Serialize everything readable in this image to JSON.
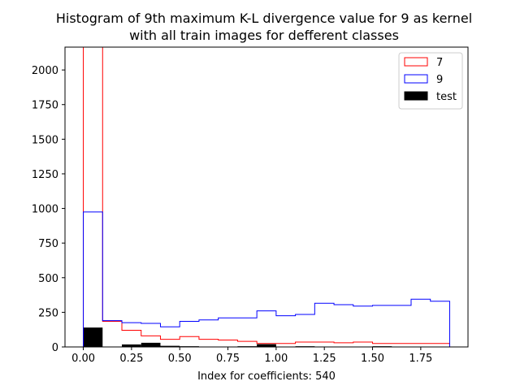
{
  "chart_data": {
    "type": "histogram",
    "title_lines": [
      "Histogram of 9th maximum K-L divergence value for 9 as kernel",
      "with all train images for defferent classes"
    ],
    "xlabel": "Index for coefficients: 540",
    "ylabel": "",
    "xlim": [
      -0.095,
      1.995
    ],
    "ylim": [
      0,
      2165
    ],
    "xticks": [
      "0.00",
      "0.25",
      "0.50",
      "0.75",
      "1.00",
      "1.25",
      "1.50",
      "1.75"
    ],
    "xtick_values": [
      0,
      0.25,
      0.5,
      0.75,
      1.0,
      1.25,
      1.5,
      1.75
    ],
    "yticks": [
      "0",
      "250",
      "500",
      "750",
      "1000",
      "1250",
      "1500",
      "1750",
      "2000"
    ],
    "ytick_values": [
      0,
      250,
      500,
      750,
      1000,
      1250,
      1500,
      1750,
      2000
    ],
    "bin_edges": [
      0.0,
      0.1,
      0.2,
      0.3,
      0.4,
      0.5,
      0.6,
      0.7,
      0.8,
      0.9,
      1.0,
      1.1,
      1.2,
      1.3,
      1.4,
      1.5,
      1.6,
      1.7,
      1.8,
      1.9
    ],
    "series": [
      {
        "name": "7",
        "style": "step",
        "color": "#ff0000",
        "values": [
          2165,
          185,
          120,
          80,
          55,
          75,
          55,
          50,
          40,
          25,
          25,
          35,
          35,
          30,
          35,
          25,
          25,
          25,
          25
        ]
      },
      {
        "name": "9",
        "style": "step",
        "color": "#0000ff",
        "values": [
          975,
          190,
          175,
          170,
          145,
          185,
          195,
          210,
          210,
          260,
          225,
          235,
          315,
          305,
          295,
          300,
          300,
          345,
          330
        ]
      },
      {
        "name": "test",
        "style": "bar",
        "color": "#000000",
        "values": [
          140,
          0,
          18,
          30,
          8,
          5,
          0,
          0,
          5,
          20,
          0,
          5,
          0,
          0,
          0,
          5,
          0,
          0,
          0
        ]
      }
    ],
    "legend_position": "top-right",
    "grid": false
  }
}
